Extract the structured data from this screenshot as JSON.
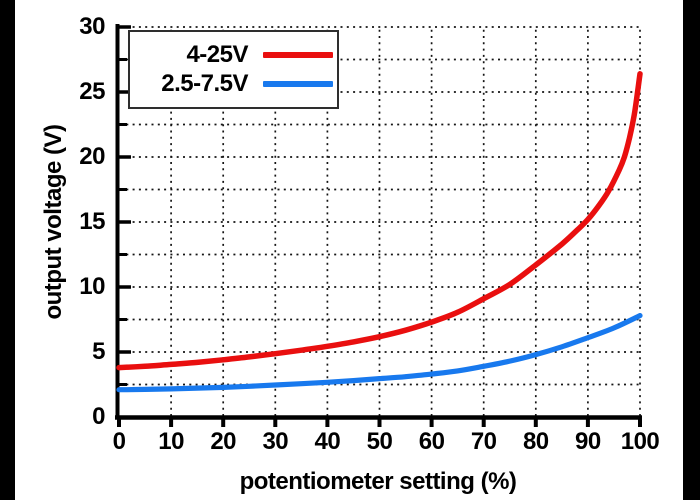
{
  "figure": {
    "background": "#ffffff",
    "side_bar_color": "#000000",
    "axis_color": "#000000",
    "grid_color": "#141414",
    "text_color": "#000000",
    "legend_border_color": "#2e2e2e"
  },
  "chart_data": {
    "type": "line",
    "title": "",
    "xlabel": "potentiometer setting (%)",
    "ylabel": "output voltage (V)",
    "xlim": [
      0,
      100
    ],
    "ylim": [
      0,
      30
    ],
    "grid": "dotted",
    "legend_position": "top-left",
    "xticks": [
      0,
      10,
      20,
      30,
      40,
      50,
      60,
      70,
      80,
      90,
      100
    ],
    "xtick_labels": [
      "0",
      "10",
      "20",
      "30",
      "40",
      "50",
      "60",
      "70",
      "80",
      "90",
      "100"
    ],
    "yticks": [
      0,
      5,
      10,
      15,
      20,
      25,
      30
    ],
    "ytick_labels": [
      "0",
      "5",
      "10",
      "15",
      "20",
      "25",
      "30"
    ],
    "yticks_minor": [
      2.5,
      7.5,
      12.5,
      17.5,
      22.5,
      27.5
    ],
    "x_gridlines": [
      10,
      20,
      30,
      40,
      50,
      60,
      70,
      80,
      90,
      100
    ],
    "y_gridlines": [
      2.5,
      5,
      7.5,
      10,
      12.5,
      15,
      17.5,
      20,
      22.5,
      25,
      27.5,
      30
    ],
    "series": [
      {
        "name": "4-25V",
        "color": "#e90f0f",
        "line_width": 5.5,
        "points": [
          [
            0,
            3.8
          ],
          [
            5,
            3.9
          ],
          [
            10,
            4.05
          ],
          [
            15,
            4.2
          ],
          [
            20,
            4.4
          ],
          [
            25,
            4.62
          ],
          [
            30,
            4.87
          ],
          [
            35,
            5.14
          ],
          [
            40,
            5.44
          ],
          [
            45,
            5.78
          ],
          [
            50,
            6.18
          ],
          [
            55,
            6.68
          ],
          [
            60,
            7.3
          ],
          [
            65,
            8.05
          ],
          [
            70,
            9.1
          ],
          [
            75,
            10.2
          ],
          [
            80,
            11.7
          ],
          [
            85,
            13.3
          ],
          [
            88,
            14.4
          ],
          [
            90,
            15.2
          ],
          [
            92,
            16.2
          ],
          [
            94,
            17.4
          ],
          [
            96,
            19.0
          ],
          [
            97,
            20.0
          ],
          [
            98,
            21.5
          ],
          [
            99,
            23.5
          ],
          [
            100,
            26.4
          ]
        ]
      },
      {
        "name": "2.5-7.5V",
        "color": "#1879ee",
        "line_width": 5.2,
        "points": [
          [
            0,
            2.1
          ],
          [
            5,
            2.12
          ],
          [
            10,
            2.16
          ],
          [
            15,
            2.22
          ],
          [
            20,
            2.28
          ],
          [
            25,
            2.36
          ],
          [
            30,
            2.46
          ],
          [
            35,
            2.56
          ],
          [
            40,
            2.67
          ],
          [
            45,
            2.8
          ],
          [
            50,
            2.95
          ],
          [
            55,
            3.1
          ],
          [
            60,
            3.3
          ],
          [
            65,
            3.55
          ],
          [
            70,
            3.9
          ],
          [
            75,
            4.3
          ],
          [
            80,
            4.8
          ],
          [
            85,
            5.4
          ],
          [
            90,
            6.1
          ],
          [
            95,
            6.85
          ],
          [
            100,
            7.8
          ]
        ]
      }
    ]
  }
}
